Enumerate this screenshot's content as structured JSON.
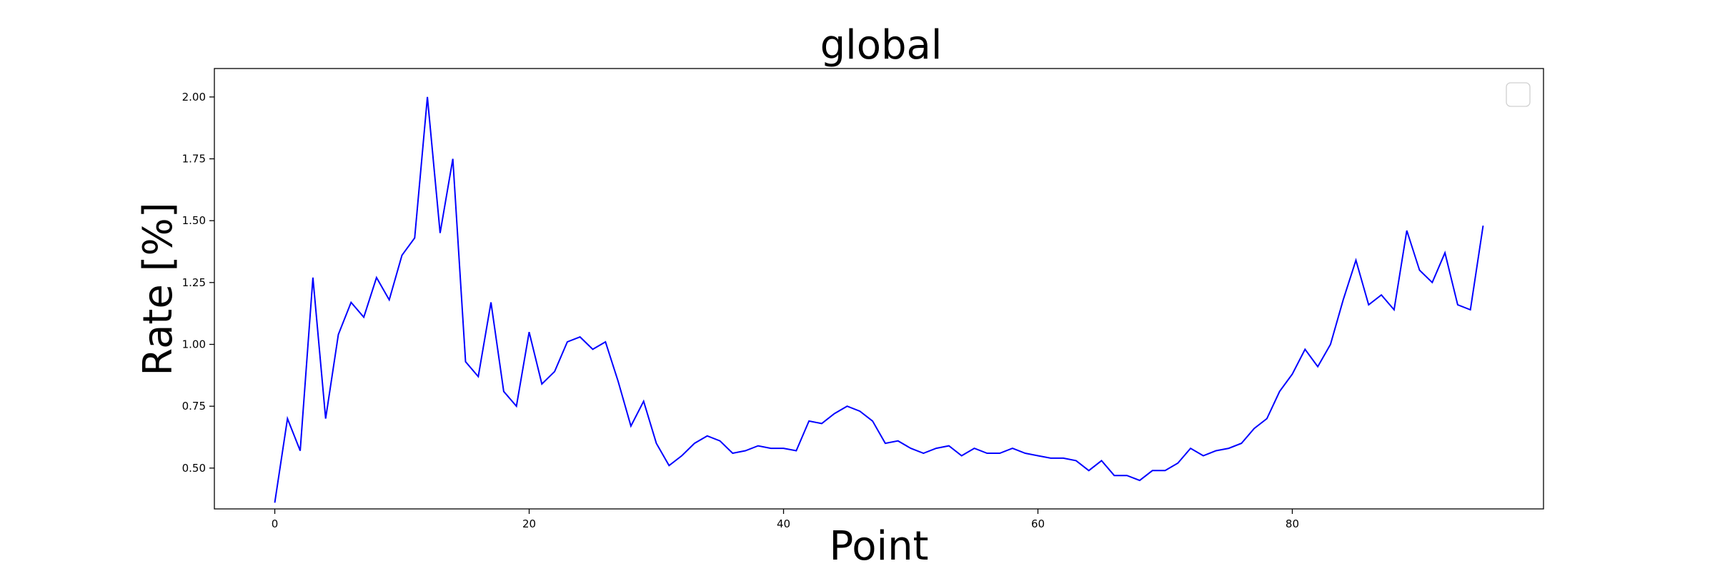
{
  "chart_data": {
    "type": "line",
    "title": "global",
    "xlabel": "Point",
    "ylabel": "Rate [%]",
    "xlim": [
      -4.75,
      99.75
    ],
    "ylim": [
      0.335,
      2.115
    ],
    "xticks": [
      0,
      20,
      40,
      60,
      80
    ],
    "xtick_labels": [
      "0",
      "20",
      "40",
      "60",
      "80"
    ],
    "yticks": [
      0.5,
      0.75,
      1.0,
      1.25,
      1.5,
      1.75,
      2.0
    ],
    "ytick_labels": [
      "0.50",
      "0.75",
      "1.00",
      "1.25",
      "1.50",
      "1.75",
      "2.00"
    ],
    "grid": false,
    "legend": "top-right (empty)",
    "series": [
      {
        "color": "#0000ff",
        "x": [
          0,
          1,
          2,
          3,
          4,
          5,
          6,
          7,
          8,
          9,
          10,
          11,
          12,
          13,
          14,
          15,
          16,
          17,
          18,
          19,
          20,
          21,
          22,
          23,
          24,
          25,
          26,
          27,
          28,
          29,
          30,
          31,
          32,
          33,
          34,
          35,
          36,
          37,
          38,
          39,
          40,
          41,
          42,
          43,
          44,
          45,
          46,
          47,
          48,
          49,
          50,
          51,
          52,
          53,
          54,
          55,
          56,
          57,
          58,
          59,
          60,
          61,
          62,
          63,
          64,
          65,
          66,
          67,
          68,
          69,
          70,
          71,
          72,
          73,
          74,
          75,
          76,
          77,
          78,
          79,
          80,
          81,
          82,
          83,
          84,
          85,
          86,
          87,
          88,
          89,
          90,
          91,
          92,
          93,
          94,
          95
        ],
        "y": [
          0.36,
          0.7,
          0.57,
          1.27,
          0.7,
          1.04,
          1.17,
          1.11,
          1.27,
          1.18,
          1.36,
          1.43,
          2.0,
          1.45,
          1.75,
          0.93,
          0.87,
          1.17,
          0.81,
          0.75,
          1.05,
          0.84,
          0.89,
          1.01,
          1.03,
          0.98,
          1.01,
          0.85,
          0.67,
          0.77,
          0.6,
          0.51,
          0.55,
          0.6,
          0.63,
          0.61,
          0.56,
          0.57,
          0.59,
          0.58,
          0.58,
          0.57,
          0.69,
          0.68,
          0.72,
          0.75,
          0.73,
          0.69,
          0.6,
          0.61,
          0.58,
          0.56,
          0.58,
          0.59,
          0.55,
          0.58,
          0.56,
          0.56,
          0.58,
          0.56,
          0.55,
          0.54,
          0.54,
          0.53,
          0.49,
          0.53,
          0.47,
          0.47,
          0.45,
          0.49,
          0.49,
          0.52,
          0.58,
          0.55,
          0.57,
          0.58,
          0.6,
          0.66,
          0.7,
          0.81,
          0.88,
          0.98,
          0.91,
          1.0,
          1.18,
          1.34,
          1.16,
          1.2,
          1.14,
          1.46,
          1.3,
          1.25,
          1.37,
          1.16,
          1.14,
          1.48
        ]
      }
    ]
  }
}
